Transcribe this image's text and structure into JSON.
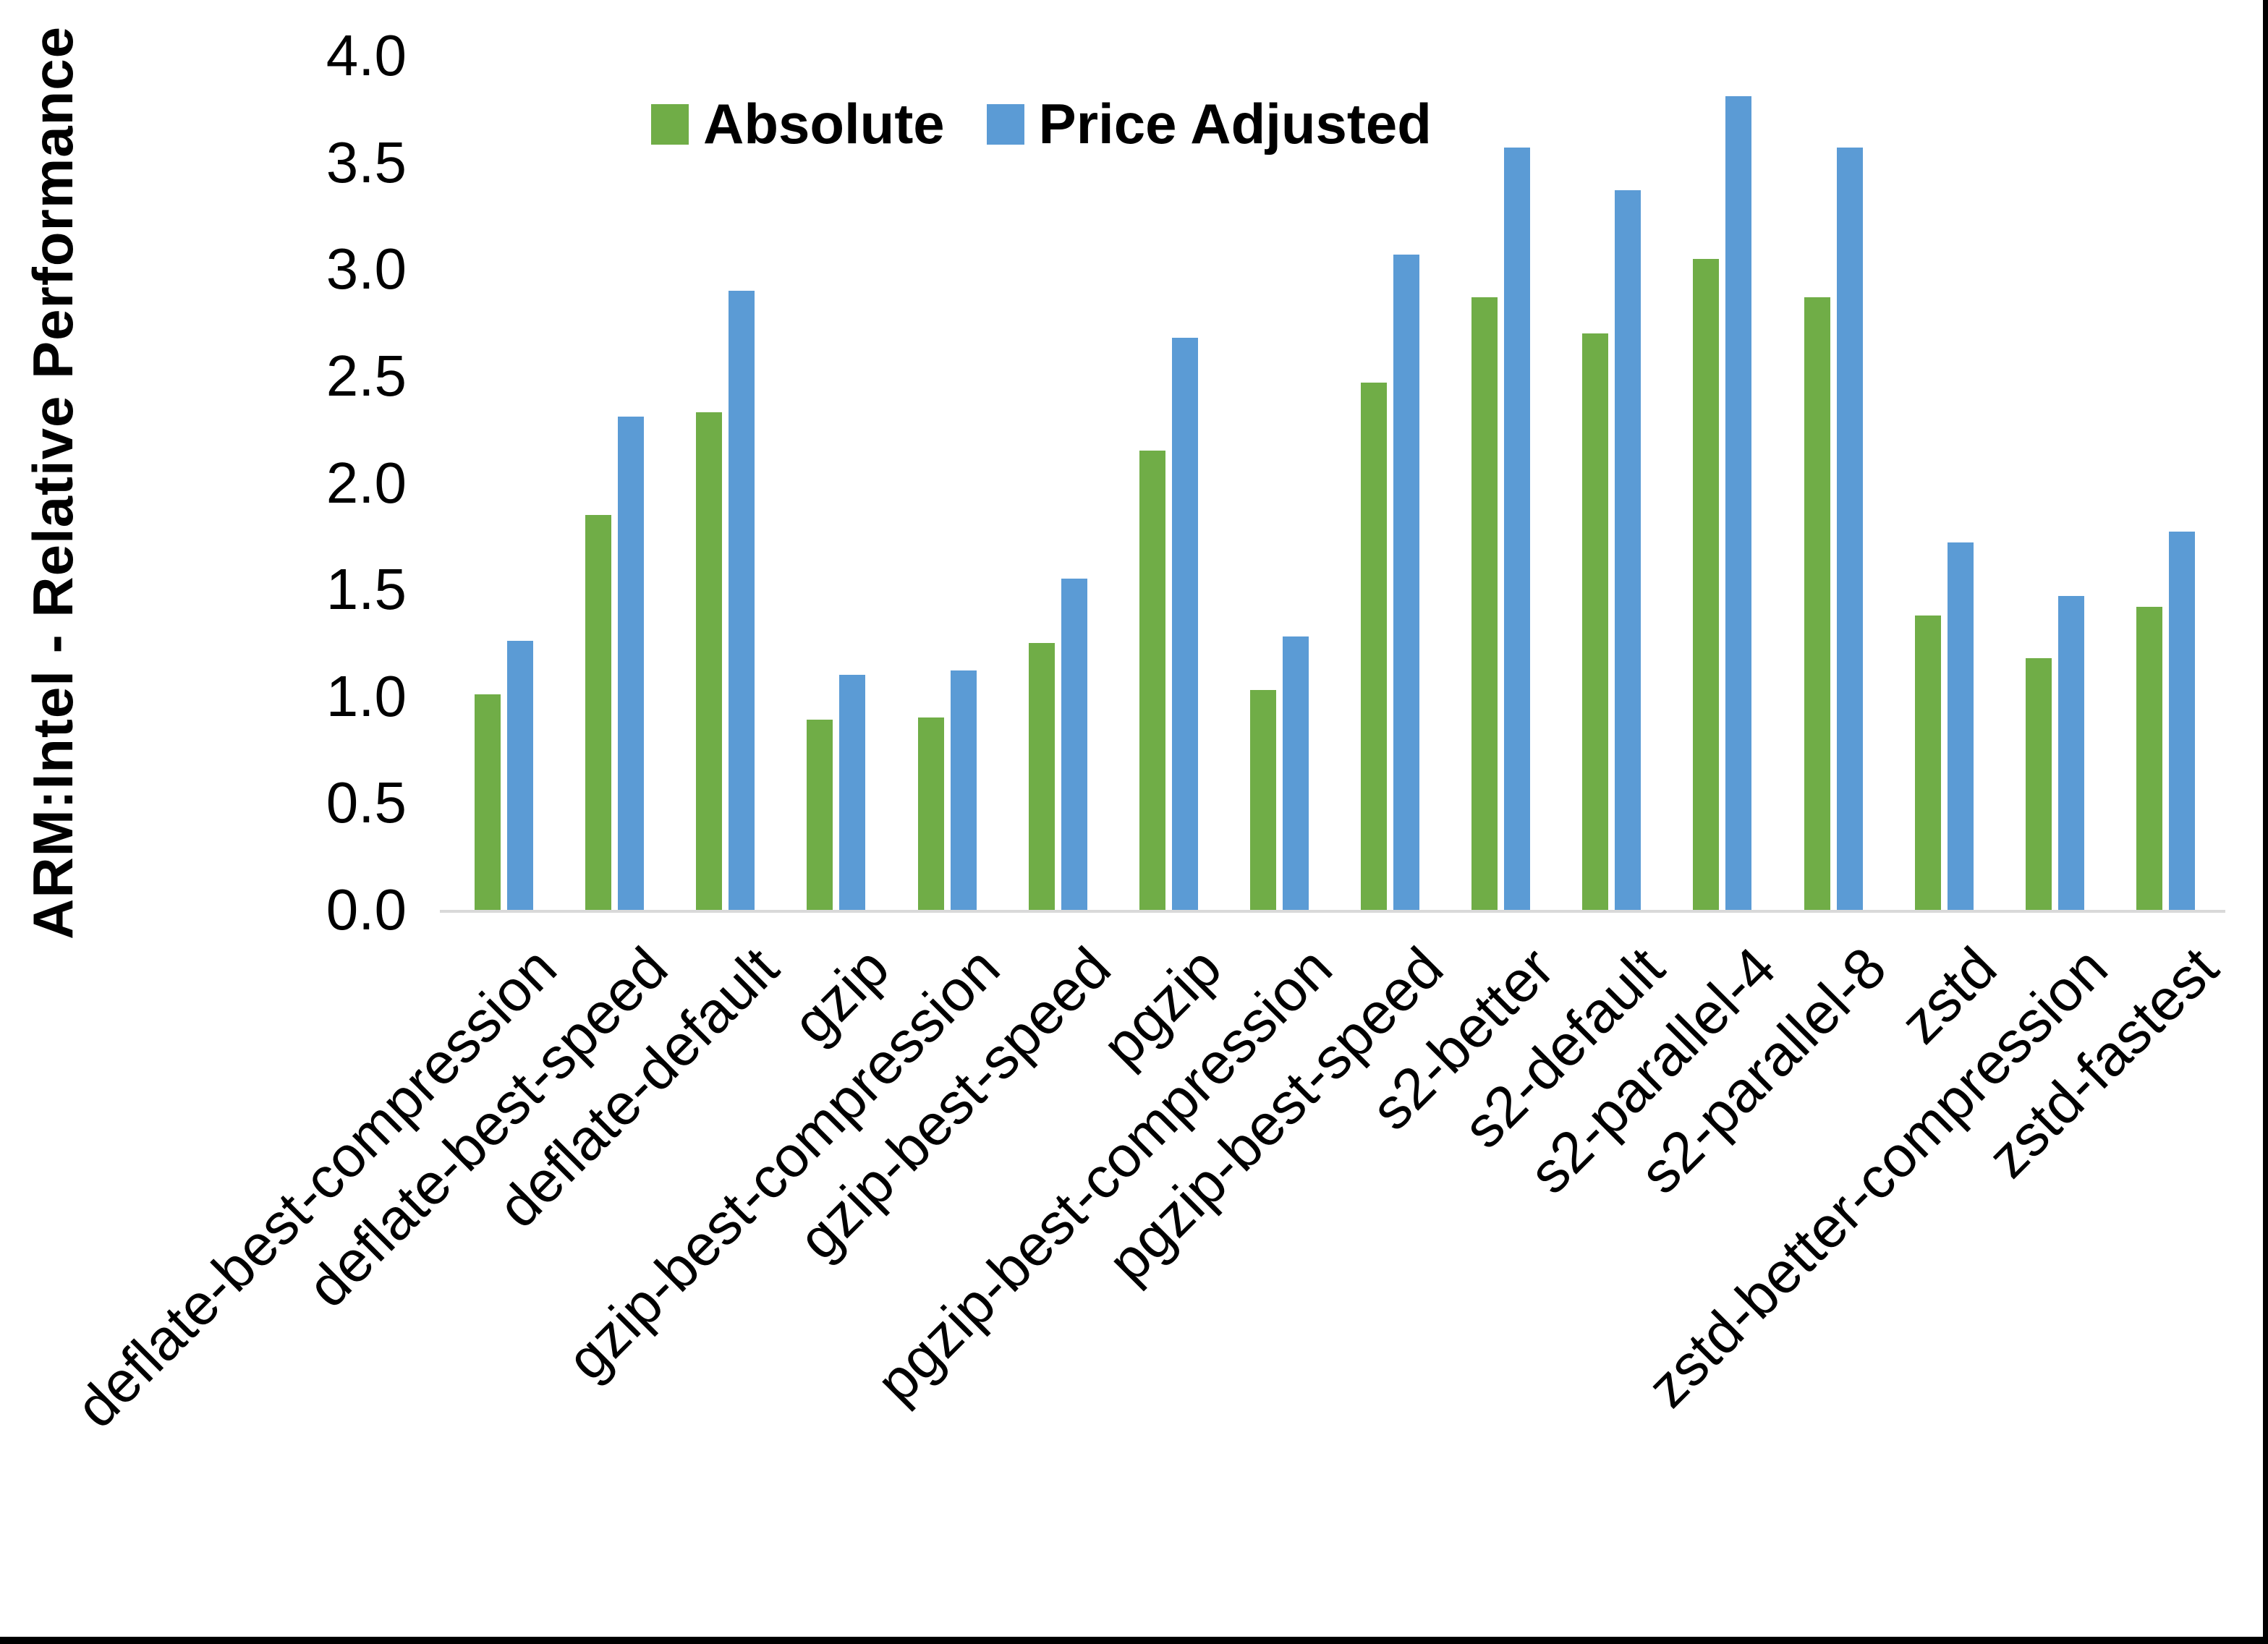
{
  "chart_data": {
    "type": "bar",
    "title": "",
    "ylabel": "ARM:Intel - Relative Performance",
    "xlabel": "",
    "ylim": [
      0,
      4
    ],
    "ytick_step": 0.5,
    "yticks": [
      "4.0",
      "3.5",
      "3.0",
      "2.5",
      "2.0",
      "1.5",
      "1.0",
      "0.5",
      "0.0"
    ],
    "grid": false,
    "legend_position": "top-center",
    "categories": [
      "deflate-best-compression",
      "deflate-best-speed",
      "deflate-default",
      "gzip",
      "gzip-best-compression",
      "gzip-best-speed",
      "pgzip",
      "pgzip-best-compression",
      "pgzip-best-speed",
      "s2-better",
      "s2-default",
      "s2-parallel-4",
      "s2-parallel-8",
      "zstd",
      "zstd-better-compression",
      "zstd-fastest"
    ],
    "series": [
      {
        "name": "Absolute",
        "color": "#70AD47",
        "values": [
          1.01,
          1.85,
          2.33,
          0.89,
          0.9,
          1.25,
          2.15,
          1.03,
          2.47,
          2.87,
          2.7,
          3.05,
          2.87,
          1.38,
          1.18,
          1.42
        ]
      },
      {
        "name": "Price Adjusted",
        "color": "#5B9BD5",
        "values": [
          1.26,
          2.31,
          2.9,
          1.1,
          1.12,
          1.55,
          2.68,
          1.28,
          3.07,
          3.57,
          3.37,
          3.81,
          3.57,
          1.72,
          1.47,
          1.77
        ]
      }
    ],
    "axis_line_color": "#D9D9D9"
  }
}
